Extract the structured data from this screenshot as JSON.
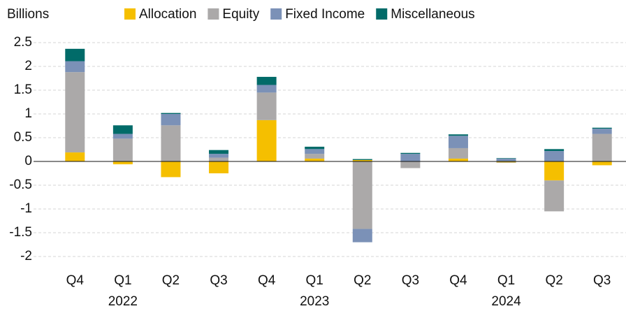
{
  "chart_data": {
    "type": "bar",
    "stacked": true,
    "y_axis_label": "Billions",
    "categories": [
      "Q4",
      "Q1",
      "Q2",
      "Q3",
      "Q4",
      "Q1",
      "Q2",
      "Q3",
      "Q4",
      "Q1",
      "Q2",
      "Q3"
    ],
    "category_groups": [
      null,
      "2022",
      null,
      null,
      null,
      "2023",
      null,
      null,
      null,
      "2024",
      null,
      null
    ],
    "series": [
      {
        "name": "Allocation",
        "color": "#f5bf00",
        "values": [
          0.19,
          -0.06,
          -0.33,
          -0.25,
          0.87,
          0.06,
          0.03,
          0,
          0.06,
          -0.02,
          -0.4,
          -0.08
        ]
      },
      {
        "name": "Equity",
        "color": "#aba9a9",
        "values": [
          1.69,
          0.48,
          0.76,
          0.08,
          0.58,
          0.1,
          -1.42,
          -0.14,
          0.22,
          -0.01,
          -0.65,
          0.58
        ]
      },
      {
        "name": "Fixed Income",
        "color": "#7b91b7",
        "values": [
          0.23,
          0.1,
          0.24,
          0.08,
          0.16,
          0.1,
          -0.28,
          0.16,
          0.26,
          0.06,
          0.22,
          0.11
        ]
      },
      {
        "name": "Miscellaneous",
        "color": "#016b69",
        "values": [
          0.26,
          0.18,
          0.02,
          0.08,
          0.17,
          0.05,
          0.02,
          0.02,
          0.03,
          0.01,
          0.04,
          0.02
        ]
      }
    ],
    "ylim": [
      -2.25,
      2.5
    ],
    "yticks": [
      2.5,
      2,
      1.5,
      1,
      0.5,
      0,
      -0.5,
      -1,
      -1.5,
      -2
    ],
    "grid": true,
    "legend": "top"
  }
}
